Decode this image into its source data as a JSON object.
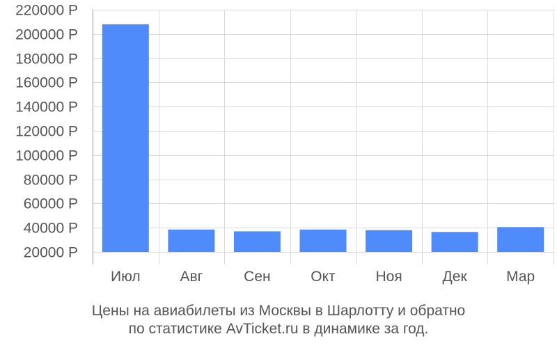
{
  "chart_data": {
    "type": "bar",
    "categories": [
      "Июл",
      "Авг",
      "Сен",
      "Окт",
      "Ноя",
      "Дек",
      "Мар"
    ],
    "values": [
      208000,
      38500,
      37000,
      38500,
      38000,
      36500,
      40500
    ],
    "ylim": [
      20000,
      220000
    ],
    "ytick_values": [
      20000,
      40000,
      60000,
      80000,
      100000,
      120000,
      140000,
      160000,
      180000,
      200000,
      220000
    ],
    "ytick_labels": [
      "20000 Р",
      "40000 Р",
      "60000 Р",
      "80000 Р",
      "100000 Р",
      "120000 Р",
      "140000 Р",
      "160000 Р",
      "180000 Р",
      "200000 Р",
      "220000 Р"
    ],
    "grid": true,
    "bar_color": "#4f8bfb",
    "grid_color": "#d9d9d9",
    "caption": [
      "Цены на авиабилеты из Москвы в Шарлотту и обратно",
      "по статистике AvTicket.ru в динамике за год."
    ]
  }
}
